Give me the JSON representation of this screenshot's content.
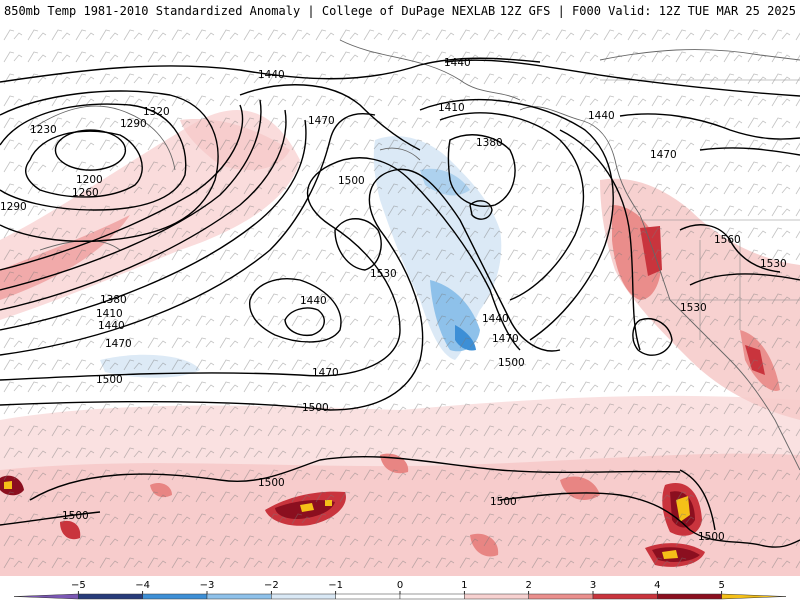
{
  "header": {
    "left_title": "850mb Temp 1981-2010 Standardized Anomaly | College of DuPage NEXLAB",
    "right_title": "12Z GFS | F000 Valid: 12Z TUE MAR 25 2025"
  },
  "map": {
    "contour_labels": [
      {
        "id": "h1440-top",
        "text": "1440"
      },
      {
        "id": "h1440-topright",
        "text": "1440"
      },
      {
        "id": "h1440-gulf",
        "text": "1440"
      },
      {
        "id": "h1410-ak",
        "text": "1410"
      },
      {
        "id": "h1380-ak",
        "text": "1380"
      },
      {
        "id": "h1470-nc",
        "text": "1470"
      },
      {
        "id": "h1470-ne",
        "text": "1470"
      },
      {
        "id": "h1500-nc",
        "text": "1500"
      },
      {
        "id": "h1530-c",
        "text": "1530"
      },
      {
        "id": "h1320-w",
        "text": "1320"
      },
      {
        "id": "h1290-w",
        "text": "1290"
      },
      {
        "id": "h1230-w",
        "text": "1230"
      },
      {
        "id": "h1200-w",
        "text": "1200"
      },
      {
        "id": "h1260-w",
        "text": "1260"
      },
      {
        "id": "h1290-sw",
        "text": "1290"
      },
      {
        "id": "h1380-sw",
        "text": "1380"
      },
      {
        "id": "h1410-sw",
        "text": "1410"
      },
      {
        "id": "h1440-sw",
        "text": "1440"
      },
      {
        "id": "h1470-sw",
        "text": "1470"
      },
      {
        "id": "h1440-low",
        "text": "1440"
      },
      {
        "id": "h1470-low",
        "text": "1470"
      },
      {
        "id": "h1500-w",
        "text": "1500"
      },
      {
        "id": "h1500-c",
        "text": "1500"
      },
      {
        "id": "h1440-trough",
        "text": "1440"
      },
      {
        "id": "h1470-trough",
        "text": "1470"
      },
      {
        "id": "h1500-trough",
        "text": "1500"
      },
      {
        "id": "h1560-e",
        "text": "1560"
      },
      {
        "id": "h1530-e",
        "text": "1530"
      },
      {
        "id": "h1530-coast",
        "text": "1530"
      },
      {
        "id": "h1500-sw",
        "text": "1500"
      },
      {
        "id": "h1500-sc",
        "text": "1500"
      },
      {
        "id": "h1500-s",
        "text": "1500"
      },
      {
        "id": "h1500-se",
        "text": "1500"
      }
    ]
  },
  "colorbar": {
    "labels": [
      "−5",
      "−4",
      "−3",
      "−2",
      "−1",
      "0",
      "1",
      "2",
      "3",
      "4",
      "5"
    ],
    "colors": [
      "#7b57b5",
      "#273b7a",
      "#3d8fd6",
      "#8ec1ea",
      "#d9e8f5",
      "#ffffff",
      "#ffffff",
      "#f7d1d0",
      "#ea8f8d",
      "#c9343d",
      "#8b0f1f",
      "#f5c018"
    ]
  }
}
